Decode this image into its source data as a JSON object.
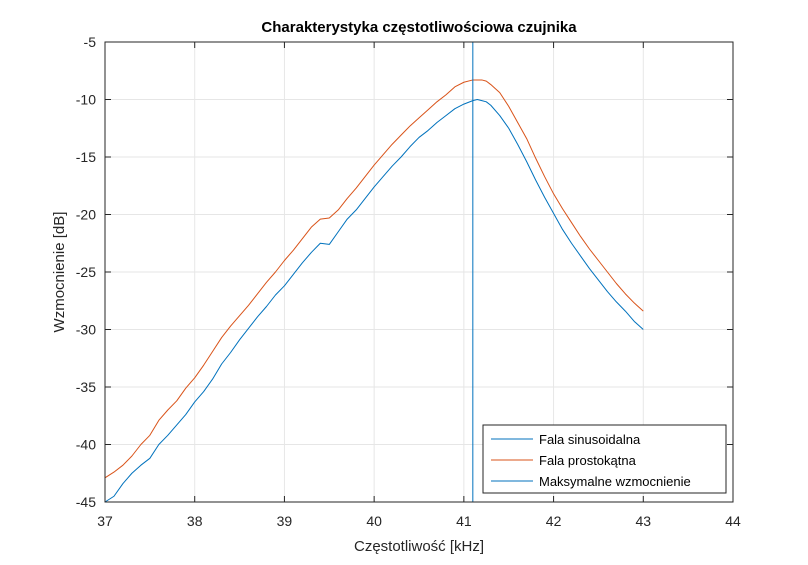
{
  "chart_data": {
    "type": "line",
    "title": "Charakterystyka częstotliwościowa czujnika",
    "xlabel": "Częstotliwość [kHz]",
    "ylabel": "Wzmocnienie [dB]",
    "xlim": [
      37,
      44
    ],
    "ylim": [
      -45,
      -5
    ],
    "xticks": [
      37,
      38,
      39,
      40,
      41,
      42,
      43,
      44
    ],
    "yticks": [
      -5,
      -10,
      -15,
      -20,
      -25,
      -30,
      -35,
      -40,
      -45
    ],
    "xtick_labels": [
      "37",
      "38",
      "39",
      "40",
      "41",
      "42",
      "43",
      "44"
    ],
    "ytick_labels": [
      "-5",
      "-10",
      "-15",
      "-20",
      "-25",
      "-30",
      "-35",
      "-40",
      "-45"
    ],
    "grid": true,
    "legend_position": "bottom-right",
    "colors": {
      "sinus": "#0072BD",
      "prostokat": "#D95319",
      "max": "#0072BD",
      "grid": "#e6e6e6",
      "axis": "#262626"
    },
    "series": [
      {
        "name": "Fala sinusoidalna",
        "x": [
          37.0,
          37.1,
          37.2,
          37.3,
          37.4,
          37.5,
          37.6,
          37.7,
          37.8,
          37.9,
          38.0,
          38.1,
          38.2,
          38.3,
          38.4,
          38.5,
          38.6,
          38.7,
          38.8,
          38.9,
          39.0,
          39.1,
          39.2,
          39.3,
          39.4,
          39.5,
          39.6,
          39.7,
          39.8,
          39.9,
          40.0,
          40.1,
          40.2,
          40.3,
          40.4,
          40.5,
          40.6,
          40.7,
          40.8,
          40.9,
          41.0,
          41.1,
          41.15,
          41.2,
          41.25,
          41.3,
          41.4,
          41.5,
          41.6,
          41.7,
          41.8,
          41.9,
          42.0,
          42.1,
          42.2,
          42.3,
          42.4,
          42.5,
          42.6,
          42.7,
          42.8,
          42.9,
          43.0
        ],
        "values": [
          -45.0,
          -44.5,
          -43.4,
          -42.5,
          -41.8,
          -41.2,
          -40.0,
          -39.2,
          -38.3,
          -37.4,
          -36.3,
          -35.4,
          -34.3,
          -33.0,
          -32.0,
          -30.9,
          -29.9,
          -28.9,
          -28.0,
          -27.0,
          -26.2,
          -25.2,
          -24.2,
          -23.3,
          -22.5,
          -22.6,
          -21.5,
          -20.4,
          -19.6,
          -18.6,
          -17.6,
          -16.7,
          -15.8,
          -15.0,
          -14.1,
          -13.3,
          -12.7,
          -12.0,
          -11.4,
          -10.8,
          -10.4,
          -10.1,
          -10.0,
          -10.1,
          -10.2,
          -10.5,
          -11.4,
          -12.5,
          -13.9,
          -15.4,
          -17.0,
          -18.5,
          -19.9,
          -21.3,
          -22.5,
          -23.6,
          -24.7,
          -25.7,
          -26.7,
          -27.6,
          -28.4,
          -29.3,
          -30.0
        ]
      },
      {
        "name": "Fala prostokątna",
        "x": [
          37.0,
          37.1,
          37.2,
          37.3,
          37.4,
          37.5,
          37.6,
          37.7,
          37.8,
          37.9,
          38.0,
          38.1,
          38.2,
          38.3,
          38.4,
          38.5,
          38.6,
          38.7,
          38.8,
          38.9,
          39.0,
          39.1,
          39.2,
          39.3,
          39.4,
          39.5,
          39.6,
          39.7,
          39.8,
          39.9,
          40.0,
          40.1,
          40.2,
          40.3,
          40.4,
          40.5,
          40.6,
          40.7,
          40.8,
          40.9,
          41.0,
          41.1,
          41.15,
          41.2,
          41.25,
          41.3,
          41.4,
          41.5,
          41.6,
          41.7,
          41.8,
          41.9,
          42.0,
          42.1,
          42.2,
          42.3,
          42.4,
          42.5,
          42.6,
          42.7,
          42.8,
          42.9,
          43.0
        ],
        "values": [
          -42.9,
          -42.4,
          -41.8,
          -41.0,
          -40.0,
          -39.2,
          -37.9,
          -37.0,
          -36.2,
          -35.1,
          -34.2,
          -33.1,
          -31.9,
          -30.7,
          -29.7,
          -28.8,
          -27.9,
          -26.9,
          -25.9,
          -25.0,
          -24.0,
          -23.1,
          -22.1,
          -21.1,
          -20.4,
          -20.3,
          -19.6,
          -18.6,
          -17.7,
          -16.7,
          -15.7,
          -14.8,
          -13.9,
          -13.1,
          -12.3,
          -11.6,
          -10.9,
          -10.2,
          -9.6,
          -8.9,
          -8.5,
          -8.3,
          -8.3,
          -8.3,
          -8.4,
          -8.7,
          -9.4,
          -10.6,
          -12.0,
          -13.4,
          -15.1,
          -16.7,
          -18.2,
          -19.5,
          -20.7,
          -21.9,
          -23.0,
          -24.0,
          -25.0,
          -26.0,
          -26.9,
          -27.7,
          -28.4
        ]
      },
      {
        "name": "Maksymalne wzmocnienie",
        "x": [
          41.1,
          41.1
        ],
        "values": [
          -45,
          -5
        ]
      }
    ]
  }
}
